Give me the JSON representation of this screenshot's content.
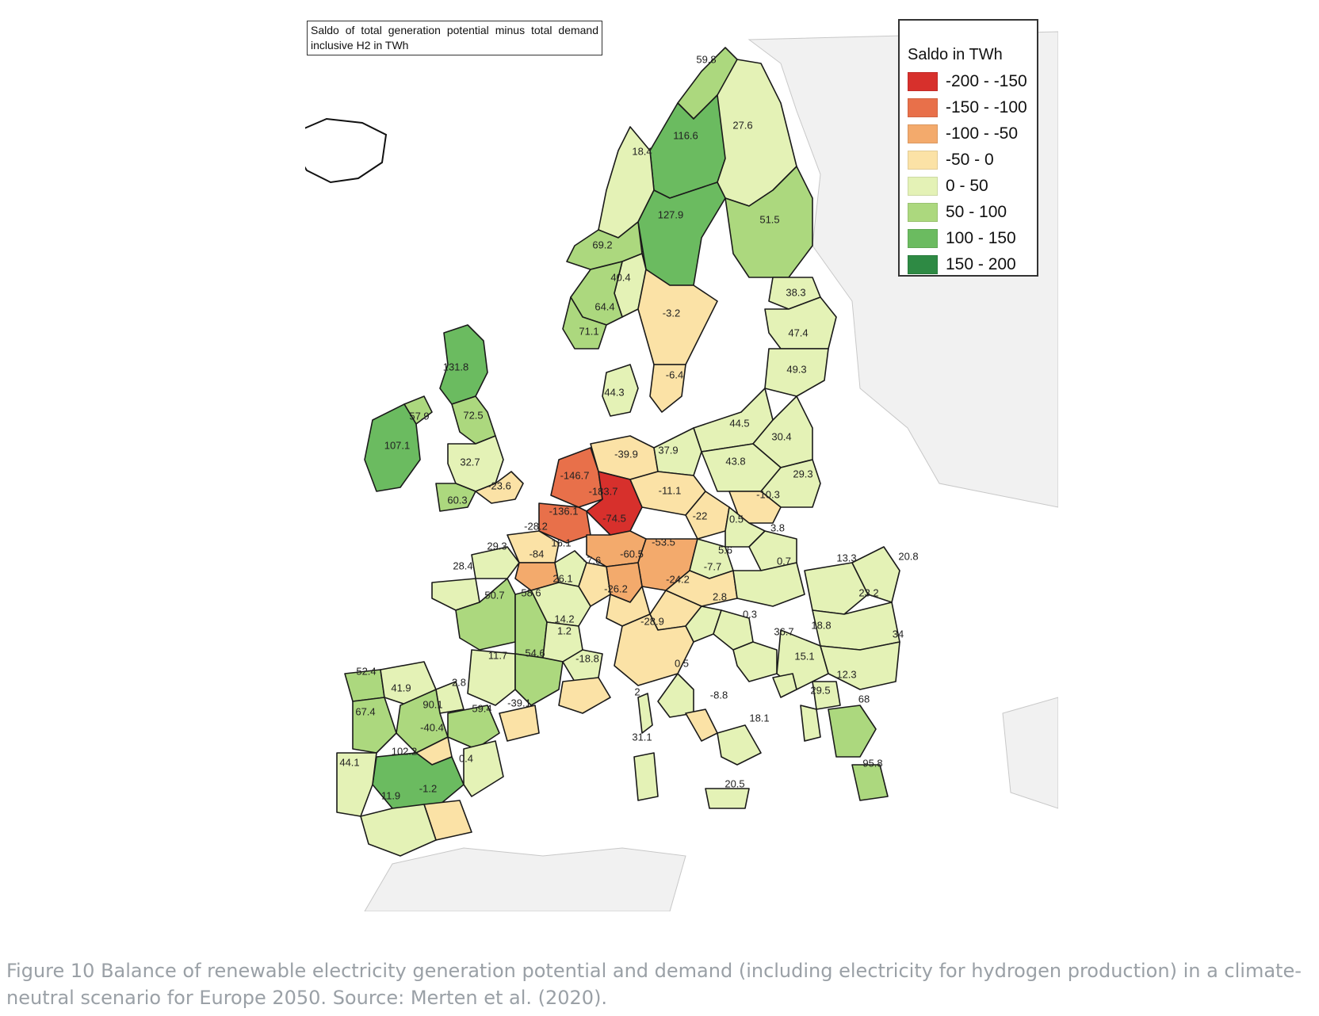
{
  "map": {
    "title": "Saldo of total generation potential minus total demand inclusive H2 in TWh",
    "legend": {
      "title": "Saldo in TWh",
      "classes": [
        {
          "label": "-200 - -150",
          "color": "#d7302c"
        },
        {
          "label": "-150 - -100",
          "color": "#e8704a"
        },
        {
          "label": "-100 - -50",
          "color": "#f3aa6c"
        },
        {
          "label": "-50 - 0",
          "color": "#fbe2a6"
        },
        {
          "label": "0 - 50",
          "color": "#e4f2b6"
        },
        {
          "label": "50 - 100",
          "color": "#acd87e"
        },
        {
          "label": "100 - 150",
          "color": "#6bbb60"
        },
        {
          "label": "150 - 200",
          "color": "#2e8a44"
        }
      ]
    },
    "regions": [
      {
        "id": "no-north",
        "value": "59.8"
      },
      {
        "id": "se-north",
        "value": "116.6"
      },
      {
        "id": "no-mid",
        "value": "18.4"
      },
      {
        "id": "fi-north",
        "value": "27.6"
      },
      {
        "id": "se-mid",
        "value": "127.9"
      },
      {
        "id": "fi-south",
        "value": "51.5"
      },
      {
        "id": "no-south-west",
        "value": "69.2"
      },
      {
        "id": "no-south",
        "value": "40.4"
      },
      {
        "id": "no-south-mid",
        "value": "64.4"
      },
      {
        "id": "no-south-tip",
        "value": "71.1"
      },
      {
        "id": "se-south",
        "value": "-3.2"
      },
      {
        "id": "se-southmost",
        "value": "-6.4"
      },
      {
        "id": "estonia",
        "value": "38.3"
      },
      {
        "id": "latvia",
        "value": "47.4"
      },
      {
        "id": "lithuania",
        "value": "49.3"
      },
      {
        "id": "scotland",
        "value": "131.8"
      },
      {
        "id": "northern-ireland",
        "value": "57.9"
      },
      {
        "id": "england-north",
        "value": "72.5"
      },
      {
        "id": "ireland",
        "value": "107.1"
      },
      {
        "id": "england-mid",
        "value": "32.7"
      },
      {
        "id": "england-south",
        "value": "-23.6"
      },
      {
        "id": "wales",
        "value": "60.3"
      },
      {
        "id": "denmark",
        "value": "44.3"
      },
      {
        "id": "poland-north",
        "value": "44.5"
      },
      {
        "id": "poland-northeast",
        "value": "30.4"
      },
      {
        "id": "poland-mid",
        "value": "43.8"
      },
      {
        "id": "poland-east",
        "value": "29.3"
      },
      {
        "id": "poland-south",
        "value": "-10.3"
      },
      {
        "id": "de-north",
        "value": "-39.9"
      },
      {
        "id": "de-northeast",
        "value": "37.9"
      },
      {
        "id": "netherlands",
        "value": "-146.7"
      },
      {
        "id": "de-west",
        "value": "-183.7"
      },
      {
        "id": "de-east",
        "value": "-11.1"
      },
      {
        "id": "belgium",
        "value": "-136.1"
      },
      {
        "id": "de-southwest",
        "value": "-74.5"
      },
      {
        "id": "czechia-west",
        "value": "-22"
      },
      {
        "id": "czechia-east",
        "value": "0.5"
      },
      {
        "id": "fr-north",
        "value": "-28.2"
      },
      {
        "id": "slovakia",
        "value": "3.8"
      },
      {
        "id": "fr-normandy",
        "value": "29.3"
      },
      {
        "id": "fr-paris",
        "value": "-84"
      },
      {
        "id": "fr-champagne",
        "value": "16.1"
      },
      {
        "id": "de-bavaria",
        "value": "-53.5"
      },
      {
        "id": "de-bw",
        "value": "-60.5"
      },
      {
        "id": "austria-north",
        "value": "5.6"
      },
      {
        "id": "fr-lorraine",
        "value": "-7.6"
      },
      {
        "id": "austria",
        "value": "-7.7"
      },
      {
        "id": "hungary",
        "value": "0.7"
      },
      {
        "id": "romania-north",
        "value": "13.3"
      },
      {
        "id": "moldova-region",
        "value": "20.8"
      },
      {
        "id": "fr-brittany",
        "value": "28.4"
      },
      {
        "id": "fr-burgundy",
        "value": "26.1"
      },
      {
        "id": "switzerland",
        "value": "-26.2"
      },
      {
        "id": "austria-south",
        "value": "-24.2"
      },
      {
        "id": "slovenia",
        "value": "2.8"
      },
      {
        "id": "romania-south",
        "value": "23.2"
      },
      {
        "id": "fr-centre-west",
        "value": "50.7"
      },
      {
        "id": "fr-centre",
        "value": "58.6"
      },
      {
        "id": "fr-rhone",
        "value": "14.2"
      },
      {
        "id": "croatia",
        "value": "0.3"
      },
      {
        "id": "it-north",
        "value": "-28.9"
      },
      {
        "id": "serbia",
        "value": "18.8"
      },
      {
        "id": "fr-alps",
        "value": "1.2"
      },
      {
        "id": "bosnia",
        "value": "36.7"
      },
      {
        "id": "bulgaria",
        "value": "34"
      },
      {
        "id": "fr-southwest",
        "value": "11.7"
      },
      {
        "id": "fr-south",
        "value": "54.6"
      },
      {
        "id": "fr-provence",
        "value": "-18.8"
      },
      {
        "id": "montenegro",
        "value": "15.1"
      },
      {
        "id": "es-galicia",
        "value": "52.4"
      },
      {
        "id": "it-central",
        "value": "0.5"
      },
      {
        "id": "north-macedonia",
        "value": "12.3"
      },
      {
        "id": "es-castile-north",
        "value": "41.9"
      },
      {
        "id": "es-aragon-north",
        "value": "2.8"
      },
      {
        "id": "es-castile",
        "value": "90.1"
      },
      {
        "id": "es-aragon",
        "value": "59.4"
      },
      {
        "id": "es-catalonia",
        "value": "-39.1"
      },
      {
        "id": "corsica",
        "value": "2"
      },
      {
        "id": "it-rome",
        "value": "-8.8"
      },
      {
        "id": "albania",
        "value": "29.5"
      },
      {
        "id": "greece",
        "value": "68"
      },
      {
        "id": "portugal-north",
        "value": "67.4"
      },
      {
        "id": "es-madrid",
        "value": "-40.4"
      },
      {
        "id": "it-south",
        "value": "18.1"
      },
      {
        "id": "es-castilla-la-mancha",
        "value": "102.2"
      },
      {
        "id": "es-valencia",
        "value": "0.4"
      },
      {
        "id": "sardinia",
        "value": "31.1"
      },
      {
        "id": "portugal-south",
        "value": "44.1"
      },
      {
        "id": "greece-south",
        "value": "95.8"
      },
      {
        "id": "es-andalusia-east",
        "value": "-1.2"
      },
      {
        "id": "es-andalusia",
        "value": "11.9"
      },
      {
        "id": "sicily",
        "value": "20.5"
      }
    ]
  },
  "caption": "Figure 10 Balance of renewable electricity generation potential and demand (including electricity for hydrogen production) in a climate-neutral scenario for Europe 2050. Source: Merten et al. (2020)."
}
